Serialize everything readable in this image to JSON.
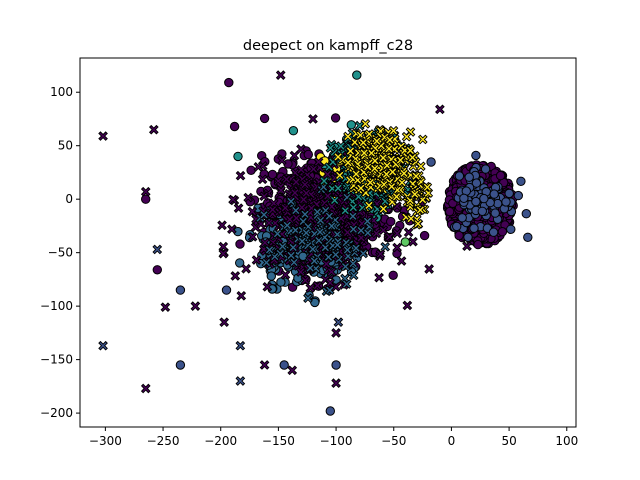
{
  "chart_data": {
    "type": "scatter",
    "title": "deepect on kampff_c28",
    "xlabel": "",
    "ylabel": "",
    "xlim": [
      -322,
      108
    ],
    "ylim": [
      -213,
      132
    ],
    "xticks": [
      -300,
      -250,
      -200,
      -150,
      -100,
      -50,
      0,
      50,
      100
    ],
    "yticks": [
      -200,
      -150,
      -100,
      -50,
      0,
      50,
      100
    ],
    "grid": false,
    "legend": "none",
    "markers": {
      "circle": "predicted cluster",
      "cross": "ground-truth cluster"
    },
    "colors": [
      "#440154",
      "#3b528b",
      "#21918c",
      "#5ec962",
      "#fde725"
    ],
    "point_groups": [
      {
        "cluster": 0,
        "marker": "circle",
        "color": "#440154",
        "n": 1400,
        "center": [
          25,
          -5
        ],
        "spread": [
          22,
          28
        ],
        "note_shape": "dense blob"
      },
      {
        "cluster": 1,
        "marker": "circle",
        "color": "#3b528b",
        "n": 90,
        "center": [
          28,
          0
        ],
        "spread": [
          18,
          22
        ]
      },
      {
        "cluster": 0,
        "marker": "circle",
        "color": "#440154",
        "n": 650,
        "center": [
          -110,
          -10
        ],
        "spread": [
          35,
          32
        ]
      },
      {
        "cluster": 2,
        "marker": "circle",
        "color": "#31688e",
        "n": 260,
        "center": [
          -130,
          -45
        ],
        "spread": [
          25,
          22
        ]
      },
      {
        "cluster": 3,
        "marker": "circle",
        "color": "#21918c",
        "n": 120,
        "center": [
          -80,
          15
        ],
        "spread": [
          22,
          22
        ]
      },
      {
        "cluster": 4,
        "marker": "circle",
        "color": "#fde725",
        "n": 40,
        "center": [
          -85,
          20
        ],
        "spread": [
          22,
          20
        ]
      },
      {
        "cluster": 0,
        "marker": "cross",
        "color": "#440154",
        "n": 420,
        "center": [
          -115,
          -20
        ],
        "spread": [
          40,
          35
        ]
      },
      {
        "cluster": 2,
        "marker": "cross",
        "color": "#31688e",
        "n": 110,
        "center": [
          -115,
          -40
        ],
        "spread": [
          30,
          25
        ]
      },
      {
        "cluster": 3,
        "marker": "cross",
        "color": "#21918c",
        "n": 260,
        "center": [
          -72,
          28
        ],
        "spread": [
          20,
          22
        ]
      },
      {
        "cluster": 4,
        "marker": "cross",
        "color": "#fde725",
        "n": 260,
        "center": [
          -62,
          35
        ],
        "spread": [
          20,
          20
        ]
      },
      {
        "cluster": 4,
        "marker": "cross",
        "color": "#fde725",
        "n": 40,
        "center": [
          -30,
          0
        ],
        "spread": [
          6,
          20
        ]
      }
    ],
    "outliers": [
      {
        "x": -302,
        "y": -137,
        "marker": "cross",
        "color": "#3b528b"
      },
      {
        "x": -265,
        "y": -177,
        "marker": "cross",
        "color": "#440154"
      },
      {
        "x": -302,
        "y": 59,
        "marker": "cross",
        "color": "#440154"
      },
      {
        "x": -258,
        "y": 65,
        "marker": "cross",
        "color": "#440154"
      },
      {
        "x": -222,
        "y": -100,
        "marker": "cross",
        "color": "#440154"
      },
      {
        "x": -248,
        "y": -101,
        "marker": "cross",
        "color": "#440154"
      },
      {
        "x": -235,
        "y": -85,
        "marker": "circle",
        "color": "#3b528b"
      },
      {
        "x": -235,
        "y": -155,
        "marker": "circle",
        "color": "#3b528b"
      },
      {
        "x": -195,
        "y": -85,
        "marker": "circle",
        "color": "#3b528b"
      },
      {
        "x": -183,
        "y": -137,
        "marker": "cross",
        "color": "#3b528b"
      },
      {
        "x": -183,
        "y": -170,
        "marker": "cross",
        "color": "#3b528b"
      },
      {
        "x": -162,
        "y": -155,
        "marker": "cross",
        "color": "#440154"
      },
      {
        "x": -145,
        "y": -155,
        "marker": "circle",
        "color": "#3b528b"
      },
      {
        "x": -138,
        "y": -160,
        "marker": "cross",
        "color": "#440154"
      },
      {
        "x": -100,
        "y": -155,
        "marker": "circle",
        "color": "#3b528b"
      },
      {
        "x": -100,
        "y": -172,
        "marker": "cross",
        "color": "#440154"
      },
      {
        "x": -105,
        "y": -198,
        "marker": "circle",
        "color": "#3b528b"
      },
      {
        "x": -197,
        "y": -115,
        "marker": "cross",
        "color": "#440154"
      },
      {
        "x": -193,
        "y": 109,
        "marker": "circle",
        "color": "#440154"
      },
      {
        "x": -148,
        "y": 116,
        "marker": "cross",
        "color": "#440154"
      },
      {
        "x": -82,
        "y": 116,
        "marker": "circle",
        "color": "#21918c"
      },
      {
        "x": -10,
        "y": 84,
        "marker": "cross",
        "color": "#440154"
      },
      {
        "x": -188,
        "y": 68,
        "marker": "circle",
        "color": "#440154"
      },
      {
        "x": -185,
        "y": 40,
        "marker": "circle",
        "color": "#21918c"
      },
      {
        "x": -137,
        "y": 64,
        "marker": "circle",
        "color": "#21918c"
      },
      {
        "x": -265,
        "y": 7,
        "marker": "cross",
        "color": "#440154"
      },
      {
        "x": -265,
        "y": 0,
        "marker": "circle",
        "color": "#440154"
      },
      {
        "x": -255,
        "y": -66,
        "marker": "circle",
        "color": "#440154"
      },
      {
        "x": -255,
        "y": -47,
        "marker": "cross",
        "color": "#3b528b"
      },
      {
        "x": -100,
        "y": -125,
        "marker": "cross",
        "color": "#440154"
      },
      {
        "x": -98,
        "y": -115,
        "marker": "cross",
        "color": "#3b528b"
      },
      {
        "x": -40,
        "y": -40,
        "marker": "circle",
        "color": "#5ec962"
      },
      {
        "x": -120,
        "y": 75,
        "marker": "cross",
        "color": "#440154"
      }
    ]
  }
}
